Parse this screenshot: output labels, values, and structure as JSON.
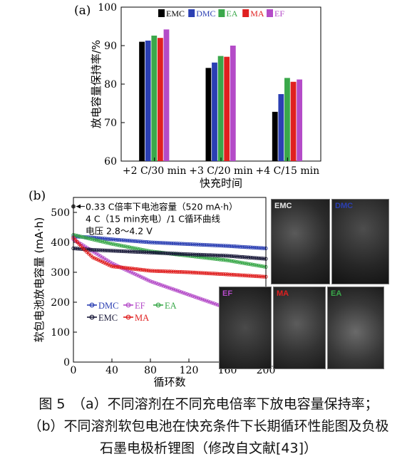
{
  "panel_a_label": "(a)",
  "panel_b_label": "(b)",
  "chart_data": [
    {
      "type": "bar",
      "categories": [
        "+2 C/30 min",
        "+3 C/20 min",
        "+4 C/15 min"
      ],
      "series": [
        {
          "name": "EMC",
          "color": "#000000",
          "values": [
            91.0,
            84.2,
            72.8
          ]
        },
        {
          "name": "DMC",
          "color": "#2b3fb3",
          "values": [
            91.3,
            85.6,
            77.4
          ]
        },
        {
          "name": "EA",
          "color": "#3aa84a",
          "values": [
            92.6,
            87.3,
            81.6
          ]
        },
        {
          "name": "MA",
          "color": "#e02020",
          "values": [
            92.0,
            87.1,
            80.6
          ]
        },
        {
          "name": "EF",
          "color": "#b44bc8",
          "values": [
            94.2,
            90.0,
            81.2
          ]
        }
      ],
      "xlabel": "快充时间",
      "ylabel": "放电容量保持率/%",
      "ylim": [
        60,
        100
      ],
      "yticks": [
        "60",
        "70",
        "80",
        "90",
        "100"
      ],
      "legend_position": "top-center"
    },
    {
      "type": "line",
      "xlabel": "循环数",
      "ylabel": "软包电池放电容量 (mA·h)",
      "xlim": [
        0,
        200
      ],
      "ylim": [
        0,
        550
      ],
      "xticks": [
        "0",
        "40",
        "80",
        "120",
        "160",
        "200"
      ],
      "yticks": [
        "0",
        "100",
        "200",
        "300",
        "400",
        "500"
      ],
      "annotations": [
        "0.33 C倍率下电池容量（520 mA·h）",
        "4 C（15 min充电）/1 C循环曲线",
        "电压 2.8～4.2 V"
      ],
      "reference_point": {
        "x": 0,
        "y": 520
      },
      "series": [
        {
          "name": "DMC",
          "color": "#2b3fb3",
          "x": [
            0,
            20,
            40,
            80,
            120,
            160,
            200
          ],
          "y": [
            420,
            416,
            410,
            400,
            394,
            388,
            380
          ]
        },
        {
          "name": "EF",
          "color": "#b44bc8",
          "x": [
            0,
            20,
            40,
            80,
            120,
            160
          ],
          "y": [
            410,
            370,
            330,
            270,
            225,
            180
          ]
        },
        {
          "name": "EA",
          "color": "#3aa84a",
          "x": [
            0,
            20,
            40,
            80,
            120,
            160,
            200
          ],
          "y": [
            425,
            410,
            395,
            370,
            355,
            340,
            318
          ]
        },
        {
          "name": "EMC",
          "color": "#1a1a3a",
          "x": [
            0,
            20,
            40,
            80,
            120,
            160,
            200
          ],
          "y": [
            380,
            375,
            372,
            366,
            360,
            355,
            345
          ]
        },
        {
          "name": "MA",
          "color": "#e02020",
          "x": [
            0,
            10,
            20,
            40,
            80,
            120,
            160,
            200
          ],
          "y": [
            415,
            380,
            350,
            320,
            305,
            300,
            293,
            285
          ]
        }
      ],
      "legend_position": "lower-left"
    }
  ],
  "photos": [
    {
      "label": "EMC",
      "color": "#111111"
    },
    {
      "label": "DMC",
      "color": "#2b3fb3"
    },
    {
      "label": "EF",
      "color": "#b44bc8"
    },
    {
      "label": "MA",
      "color": "#e02020"
    },
    {
      "label": "EA",
      "color": "#3aa84a"
    }
  ],
  "caption": {
    "line1": "图 5　（a）不同溶剂在不同充电倍率下放电容量保持率；",
    "line2": "（b）不同溶剂软包电池在快充条件下长期循环性能图及负极",
    "line3": "石墨电极析锂图（修改自文献[43]）"
  }
}
